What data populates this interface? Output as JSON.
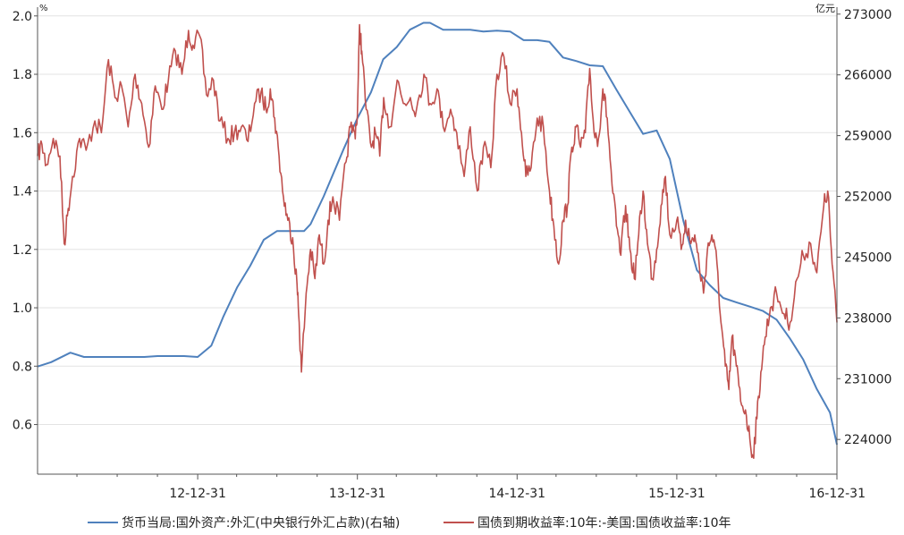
{
  "chart_data": {
    "type": "line",
    "left_axis": {
      "unit": "%",
      "ylim": [
        0.43,
        2.03
      ],
      "ticks": [
        0.6,
        0.8,
        1.0,
        1.2,
        1.4,
        1.6,
        1.8,
        2.0
      ],
      "tick_labels": [
        "0.6",
        "0.8",
        "1.0",
        "1.2",
        "1.4",
        "1.6",
        "1.8",
        "2.0"
      ]
    },
    "right_axis": {
      "unit": "亿元",
      "ylim": [
        220000,
        273800
      ],
      "ticks": [
        224000,
        231000,
        238000,
        245000,
        252000,
        259000,
        266000,
        273000
      ],
      "tick_labels": [
        "224000",
        "231000",
        "238000",
        "245000",
        "252000",
        "259000",
        "266000",
        "273000"
      ]
    },
    "x_axis": {
      "range": [
        "2011-12-31",
        "2016-12-31"
      ],
      "ticks": [
        "2012-12-31",
        "2013-12-31",
        "2014-12-31",
        "2015-12-31",
        "2016-12-31"
      ],
      "tick_labels": [
        "12-12-31",
        "13-12-31",
        "14-12-31",
        "15-12-31",
        "16-12-31"
      ]
    },
    "grid": "horizontal",
    "legend_position": "bottom",
    "series": [
      {
        "name": "货币当局:国外资产:外汇(中央银行外汇占款)(右轴)",
        "axis": "right",
        "color": "#4f81bd",
        "points": [
          [
            "2011-12-31",
            232400
          ],
          [
            "2012-01-31",
            232900
          ],
          [
            "2012-03-15",
            234000
          ],
          [
            "2012-04-15",
            233500
          ],
          [
            "2012-06-15",
            233500
          ],
          [
            "2012-08-31",
            233500
          ],
          [
            "2012-09-30",
            233600
          ],
          [
            "2012-11-30",
            233600
          ],
          [
            "2012-12-31",
            233500
          ],
          [
            "2013-01-31",
            234800
          ],
          [
            "2013-02-28",
            238200
          ],
          [
            "2013-03-31",
            241500
          ],
          [
            "2013-04-30",
            244000
          ],
          [
            "2013-05-31",
            247000
          ],
          [
            "2013-06-30",
            248000
          ],
          [
            "2013-07-31",
            248000
          ],
          [
            "2013-08-31",
            248000
          ],
          [
            "2013-09-15",
            248800
          ],
          [
            "2013-10-15",
            252000
          ],
          [
            "2013-11-30",
            257500
          ],
          [
            "2013-12-31",
            261000
          ],
          [
            "2014-01-31",
            264000
          ],
          [
            "2014-02-28",
            267800
          ],
          [
            "2014-03-31",
            269200
          ],
          [
            "2014-04-30",
            271200
          ],
          [
            "2014-05-31",
            272000
          ],
          [
            "2014-06-15",
            272000
          ],
          [
            "2014-07-15",
            271200
          ],
          [
            "2014-08-15",
            271200
          ],
          [
            "2014-09-15",
            271200
          ],
          [
            "2014-10-15",
            271000
          ],
          [
            "2014-11-15",
            271100
          ],
          [
            "2014-12-15",
            271000
          ],
          [
            "2015-01-15",
            270000
          ],
          [
            "2015-02-15",
            270000
          ],
          [
            "2015-03-15",
            269800
          ],
          [
            "2015-04-15",
            268000
          ],
          [
            "2015-05-15",
            267600
          ],
          [
            "2015-06-15",
            267100
          ],
          [
            "2015-07-15",
            267000
          ],
          [
            "2015-08-15",
            264300
          ],
          [
            "2015-09-15",
            261700
          ],
          [
            "2015-10-15",
            259200
          ],
          [
            "2015-11-15",
            259600
          ],
          [
            "2015-12-15",
            256300
          ],
          [
            "2016-01-15",
            249200
          ],
          [
            "2016-02-15",
            243500
          ],
          [
            "2016-03-15",
            241800
          ],
          [
            "2016-04-15",
            240300
          ],
          [
            "2016-05-15",
            239800
          ],
          [
            "2016-06-15",
            239300
          ],
          [
            "2016-07-15",
            238800
          ],
          [
            "2016-08-15",
            237800
          ],
          [
            "2016-09-15",
            235600
          ],
          [
            "2016-10-15",
            233200
          ],
          [
            "2016-11-15",
            229800
          ],
          [
            "2016-12-15",
            227100
          ],
          [
            "2016-12-31",
            223400
          ]
        ]
      },
      {
        "name": "国债到期收益率:10年:-美国:国债收益率:10年",
        "axis": "left",
        "color": "#c0504d",
        "points": [
          [
            "2011-12-31",
            1.52
          ],
          [
            "2012-01-10",
            1.56
          ],
          [
            "2012-01-20",
            1.49
          ],
          [
            "2012-02-05",
            1.58
          ],
          [
            "2012-02-20",
            1.52
          ],
          [
            "2012-03-01",
            1.22
          ],
          [
            "2012-03-10",
            1.34
          ],
          [
            "2012-03-20",
            1.45
          ],
          [
            "2012-04-05",
            1.58
          ],
          [
            "2012-04-20",
            1.54
          ],
          [
            "2012-05-10",
            1.64
          ],
          [
            "2012-05-25",
            1.6
          ],
          [
            "2012-06-10",
            1.85
          ],
          [
            "2012-06-25",
            1.72
          ],
          [
            "2012-07-10",
            1.76
          ],
          [
            "2012-07-25",
            1.62
          ],
          [
            "2012-08-10",
            1.8
          ],
          [
            "2012-08-25",
            1.7
          ],
          [
            "2012-09-10",
            1.55
          ],
          [
            "2012-09-25",
            1.76
          ],
          [
            "2012-10-10",
            1.68
          ],
          [
            "2012-10-25",
            1.78
          ],
          [
            "2012-11-10",
            1.88
          ],
          [
            "2012-11-25",
            1.8
          ],
          [
            "2012-12-10",
            1.95
          ],
          [
            "2012-12-20",
            1.9
          ],
          [
            "2013-01-05",
            1.93
          ],
          [
            "2013-01-20",
            1.73
          ],
          [
            "2013-02-05",
            1.78
          ],
          [
            "2013-02-20",
            1.64
          ],
          [
            "2013-03-10",
            1.58
          ],
          [
            "2013-03-25",
            1.6
          ],
          [
            "2013-04-10",
            1.62
          ],
          [
            "2013-04-25",
            1.57
          ],
          [
            "2013-05-10",
            1.7
          ],
          [
            "2013-05-25",
            1.74
          ],
          [
            "2013-06-05",
            1.68
          ],
          [
            "2013-06-15",
            1.75
          ],
          [
            "2013-06-25",
            1.65
          ],
          [
            "2013-07-05",
            1.52
          ],
          [
            "2013-07-15",
            1.38
          ],
          [
            "2013-07-25",
            1.3
          ],
          [
            "2013-08-05",
            1.24
          ],
          [
            "2013-08-15",
            1.08
          ],
          [
            "2013-08-20",
            0.95
          ],
          [
            "2013-08-25",
            0.78
          ],
          [
            "2013-09-05",
            1.05
          ],
          [
            "2013-09-15",
            1.2
          ],
          [
            "2013-09-25",
            1.1
          ],
          [
            "2013-10-05",
            1.25
          ],
          [
            "2013-10-15",
            1.15
          ],
          [
            "2013-10-25",
            1.3
          ],
          [
            "2013-11-05",
            1.38
          ],
          [
            "2013-11-20",
            1.3
          ],
          [
            "2013-12-05",
            1.5
          ],
          [
            "2013-12-15",
            1.62
          ],
          [
            "2013-12-25",
            1.6
          ],
          [
            "2013-12-31",
            1.66
          ],
          [
            "2014-01-05",
            1.97
          ],
          [
            "2014-01-10",
            1.88
          ],
          [
            "2014-01-20",
            1.68
          ],
          [
            "2014-02-01",
            1.55
          ],
          [
            "2014-02-10",
            1.6
          ],
          [
            "2014-02-20",
            1.52
          ],
          [
            "2014-03-01",
            1.72
          ],
          [
            "2014-03-15",
            1.62
          ],
          [
            "2014-04-01",
            1.78
          ],
          [
            "2014-04-15",
            1.7
          ],
          [
            "2014-05-01",
            1.72
          ],
          [
            "2014-05-15",
            1.68
          ],
          [
            "2014-06-01",
            1.8
          ],
          [
            "2014-06-15",
            1.7
          ],
          [
            "2014-07-01",
            1.75
          ],
          [
            "2014-07-15",
            1.62
          ],
          [
            "2014-08-01",
            1.68
          ],
          [
            "2014-08-15",
            1.6
          ],
          [
            "2014-09-01",
            1.45
          ],
          [
            "2014-09-15",
            1.62
          ],
          [
            "2014-10-01",
            1.4
          ],
          [
            "2014-10-15",
            1.55
          ],
          [
            "2014-11-01",
            1.48
          ],
          [
            "2014-11-15",
            1.8
          ],
          [
            "2014-12-01",
            1.86
          ],
          [
            "2014-12-15",
            1.7
          ],
          [
            "2014-12-31",
            1.75
          ],
          [
            "2015-01-10",
            1.6
          ],
          [
            "2015-01-20",
            1.45
          ],
          [
            "2015-02-01",
            1.48
          ],
          [
            "2015-02-15",
            1.65
          ],
          [
            "2015-03-01",
            1.62
          ],
          [
            "2015-03-15",
            1.4
          ],
          [
            "2015-03-25",
            1.28
          ],
          [
            "2015-04-05",
            1.15
          ],
          [
            "2015-04-15",
            1.3
          ],
          [
            "2015-04-25",
            1.35
          ],
          [
            "2015-05-05",
            1.55
          ],
          [
            "2015-05-15",
            1.62
          ],
          [
            "2015-05-25",
            1.55
          ],
          [
            "2015-06-05",
            1.6
          ],
          [
            "2015-06-15",
            1.82
          ],
          [
            "2015-06-25",
            1.6
          ],
          [
            "2015-07-05",
            1.58
          ],
          [
            "2015-07-15",
            1.75
          ],
          [
            "2015-07-25",
            1.65
          ],
          [
            "2015-08-05",
            1.42
          ],
          [
            "2015-08-15",
            1.28
          ],
          [
            "2015-08-25",
            1.18
          ],
          [
            "2015-09-05",
            1.35
          ],
          [
            "2015-09-15",
            1.2
          ],
          [
            "2015-09-25",
            1.1
          ],
          [
            "2015-10-05",
            1.25
          ],
          [
            "2015-10-15",
            1.4
          ],
          [
            "2015-10-25",
            1.22
          ],
          [
            "2015-11-05",
            1.1
          ],
          [
            "2015-11-15",
            1.2
          ],
          [
            "2015-11-25",
            1.35
          ],
          [
            "2015-12-05",
            1.45
          ],
          [
            "2015-12-15",
            1.25
          ],
          [
            "2015-12-31",
            1.3
          ],
          [
            "2016-01-10",
            1.2
          ],
          [
            "2016-01-20",
            1.3
          ],
          [
            "2016-02-01",
            1.22
          ],
          [
            "2016-02-10",
            1.25
          ],
          [
            "2016-02-20",
            1.15
          ],
          [
            "2016-03-01",
            1.05
          ],
          [
            "2016-03-10",
            1.2
          ],
          [
            "2016-03-20",
            1.25
          ],
          [
            "2016-04-01",
            1.15
          ],
          [
            "2016-04-10",
            0.95
          ],
          [
            "2016-04-20",
            0.8
          ],
          [
            "2016-04-28",
            0.72
          ],
          [
            "2016-05-05",
            0.9
          ],
          [
            "2016-05-15",
            0.8
          ],
          [
            "2016-05-25",
            0.68
          ],
          [
            "2016-06-05",
            0.65
          ],
          [
            "2016-06-15",
            0.55
          ],
          [
            "2016-06-22",
            0.49
          ],
          [
            "2016-07-01",
            0.62
          ],
          [
            "2016-07-10",
            0.78
          ],
          [
            "2016-07-20",
            0.9
          ],
          [
            "2016-08-01",
            1.0
          ],
          [
            "2016-08-15",
            1.05
          ],
          [
            "2016-09-01",
            0.98
          ],
          [
            "2016-09-15",
            0.95
          ],
          [
            "2016-10-01",
            1.1
          ],
          [
            "2016-10-15",
            1.18
          ],
          [
            "2016-11-01",
            1.22
          ],
          [
            "2016-11-15",
            1.12
          ],
          [
            "2016-12-01",
            1.35
          ],
          [
            "2016-12-10",
            1.4
          ],
          [
            "2016-12-20",
            1.15
          ],
          [
            "2016-12-31",
            0.95
          ]
        ]
      }
    ]
  },
  "legend": {
    "series_1": "货币当局:国外资产:外汇(中央银行外汇占款)(右轴)",
    "series_2": "国债到期收益率:10年:-美国:国债收益率:10年"
  },
  "axes_text": {
    "left_unit": "%",
    "right_unit": "亿元"
  }
}
